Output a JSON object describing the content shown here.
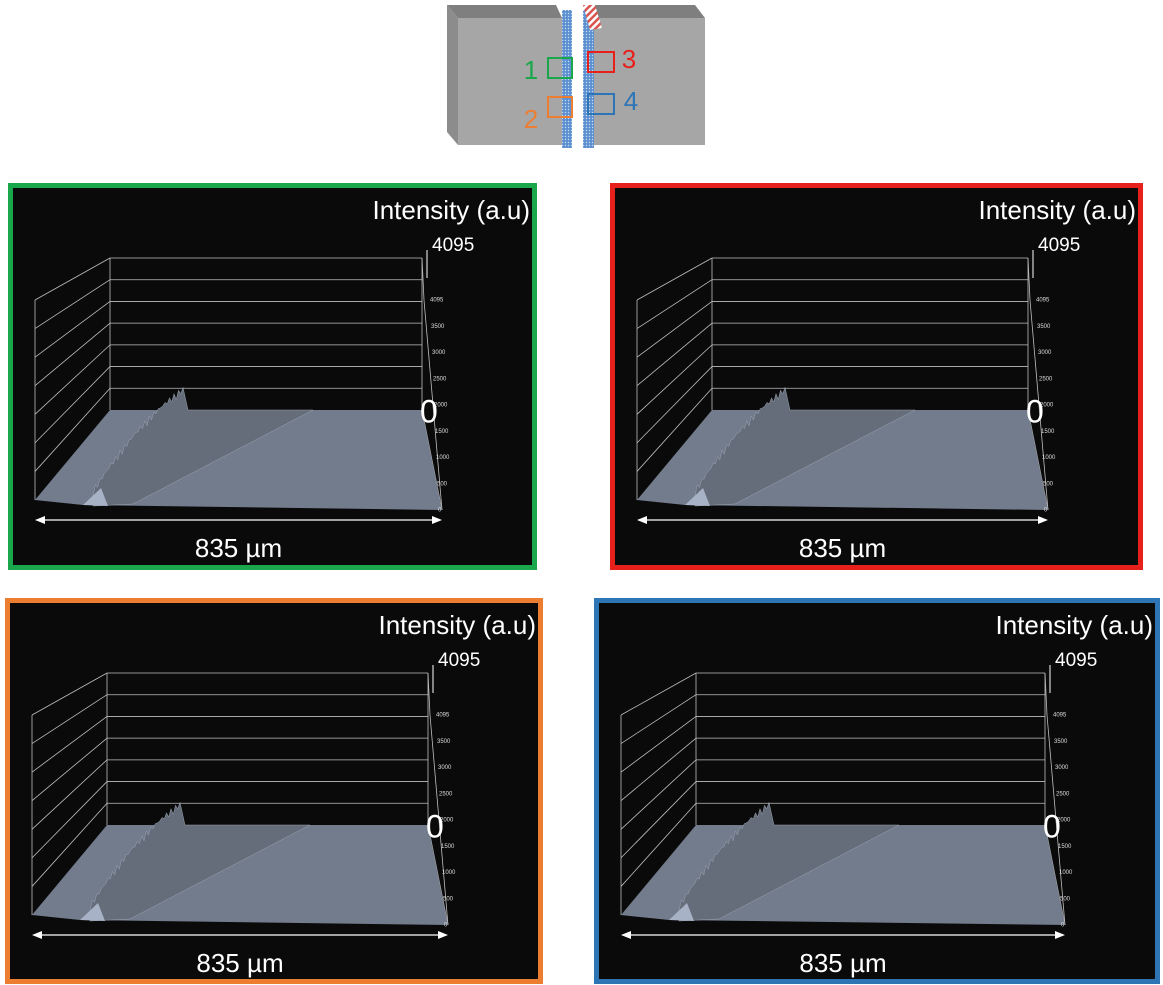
{
  "diagram": {
    "regions": [
      {
        "label": "1",
        "color": "#1aa64a"
      },
      {
        "label": "2",
        "color": "#ed7d31"
      },
      {
        "label": "3",
        "color": "#e8201c"
      },
      {
        "label": "4",
        "color": "#2e75b6"
      }
    ]
  },
  "panels": [
    {
      "axis_title": "Intensity (a.u)",
      "max_label": "4095",
      "zero_label": "0",
      "scale_label": "835 µm",
      "ticks": [
        4095,
        3500,
        3000,
        2500,
        2000,
        1500,
        1000,
        500,
        0
      ]
    },
    {
      "axis_title": "Intensity (a.u)",
      "max_label": "4095",
      "zero_label": "0",
      "scale_label": "835 µm",
      "ticks": [
        4095,
        3500,
        3000,
        2500,
        2000,
        1500,
        1000,
        500,
        0
      ]
    },
    {
      "axis_title": "Intensity (a.u)",
      "max_label": "4095",
      "zero_label": "0",
      "scale_label": "835 µm",
      "ticks": [
        4095,
        3500,
        3000,
        2500,
        2000,
        1500,
        1000,
        500,
        0
      ]
    },
    {
      "axis_title": "Intensity (a.u)",
      "max_label": "4095",
      "zero_label": "0",
      "scale_label": "835 µm",
      "ticks": [
        4095,
        3500,
        3000,
        2500,
        2000,
        1500,
        1000,
        500,
        0
      ]
    }
  ]
}
